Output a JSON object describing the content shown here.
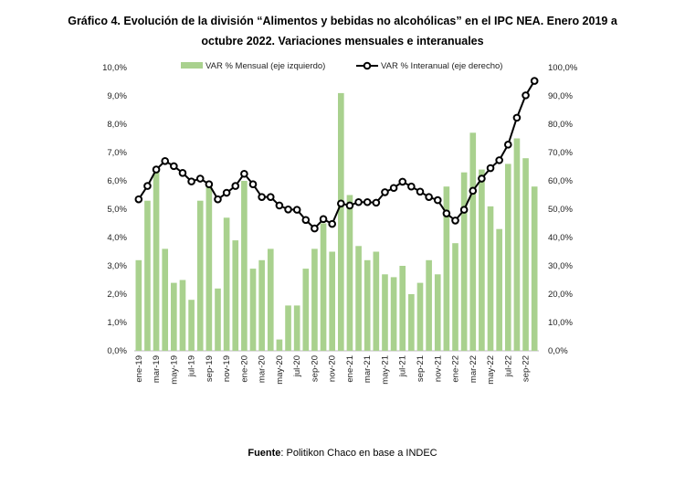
{
  "chart_data": {
    "type": "bar+line",
    "title": "Gráfico 4. Evolución de la división “Alimentos y bebidas no alcohólicas” en el IPC NEA. Enero 2019 a octubre 2022. Variaciones mensuales e interanuales",
    "title_lines": [
      "Gráfico 4. Evolución de la división “Alimentos y bebidas no alcohólicas” en el IPC NEA. Enero 2019 a",
      "octubre 2022. Variaciones mensuales e interanuales"
    ],
    "x": [
      "ene-19",
      "feb-19",
      "mar-19",
      "abr-19",
      "may-19",
      "jun-19",
      "jul-19",
      "ago-19",
      "sep-19",
      "oct-19",
      "nov-19",
      "dic-19",
      "ene-20",
      "feb-20",
      "mar-20",
      "abr-20",
      "may-20",
      "jun-20",
      "jul-20",
      "ago-20",
      "sep-20",
      "oct-20",
      "nov-20",
      "dic-20",
      "ene-21",
      "feb-21",
      "mar-21",
      "abr-21",
      "may-21",
      "jun-21",
      "jul-21",
      "ago-21",
      "sep-21",
      "oct-21",
      "nov-21",
      "dic-21",
      "ene-22",
      "feb-22",
      "mar-22",
      "abr-22",
      "may-22",
      "jun-22",
      "jul-22",
      "ago-22",
      "sep-22",
      "oct-22"
    ],
    "x_tick_labels": [
      "ene-19",
      "mar-19",
      "may-19",
      "jul-19",
      "sep-19",
      "nov-19",
      "ene-20",
      "mar-20",
      "may-20",
      "jul-20",
      "sep-20",
      "nov-20",
      "ene-21",
      "mar-21",
      "may-21",
      "jul-21",
      "sep-21",
      "nov-21",
      "ene-22",
      "mar-22",
      "may-22",
      "jul-22",
      "sep-22"
    ],
    "series": [
      {
        "name": "VAR % Mensual (eje izquierdo)",
        "type": "bar",
        "axis": "left",
        "color": "#a9d18e",
        "values": [
          3.2,
          5.3,
          6.3,
          3.6,
          2.4,
          2.5,
          1.8,
          5.3,
          5.8,
          2.2,
          4.7,
          3.9,
          6.0,
          2.9,
          3.2,
          3.6,
          0.4,
          1.6,
          1.6,
          2.9,
          3.6,
          4.5,
          3.5,
          9.1,
          5.5,
          3.7,
          3.2,
          3.5,
          2.7,
          2.6,
          3.0,
          2.0,
          2.4,
          3.2,
          2.7,
          5.8,
          3.8,
          6.3,
          7.7,
          6.4,
          5.1,
          4.3,
          6.6,
          7.5,
          6.8,
          5.8
        ]
      },
      {
        "name": "VAR % Interanual (eje derecho)",
        "type": "line",
        "axis": "right",
        "color": "#000000",
        "values": [
          53.5,
          58.2,
          64.0,
          67.0,
          65.2,
          62.8,
          59.8,
          60.8,
          58.8,
          53.5,
          55.8,
          58.2,
          62.5,
          58.8,
          54.3,
          54.3,
          51.3,
          49.9,
          49.8,
          46.2,
          43.2,
          46.5,
          44.8,
          52.0,
          51.3,
          52.5,
          52.5,
          52.3,
          56.0,
          57.5,
          59.7,
          58.0,
          56.2,
          54.3,
          53.2,
          48.5,
          46.0,
          49.8,
          56.5,
          60.8,
          64.5,
          67.3,
          72.8,
          82.3,
          90.2,
          95.3
        ]
      }
    ],
    "ylim_left": [
      0,
      10
    ],
    "ylim_right": [
      0,
      100
    ],
    "y_left_ticks": [
      "0,0%",
      "1,0%",
      "2,0%",
      "3,0%",
      "4,0%",
      "5,0%",
      "6,0%",
      "7,0%",
      "8,0%",
      "9,0%",
      "10,0%"
    ],
    "y_right_ticks": [
      "0,0%",
      "10,0%",
      "20,0%",
      "30,0%",
      "40,0%",
      "50,0%",
      "60,0%",
      "70,0%",
      "80,0%",
      "90,0%",
      "100,0%"
    ],
    "grid": false,
    "legend": "top"
  },
  "source": {
    "label": "Fuente",
    "text": ": Politikon Chaco en base a INDEC"
  }
}
